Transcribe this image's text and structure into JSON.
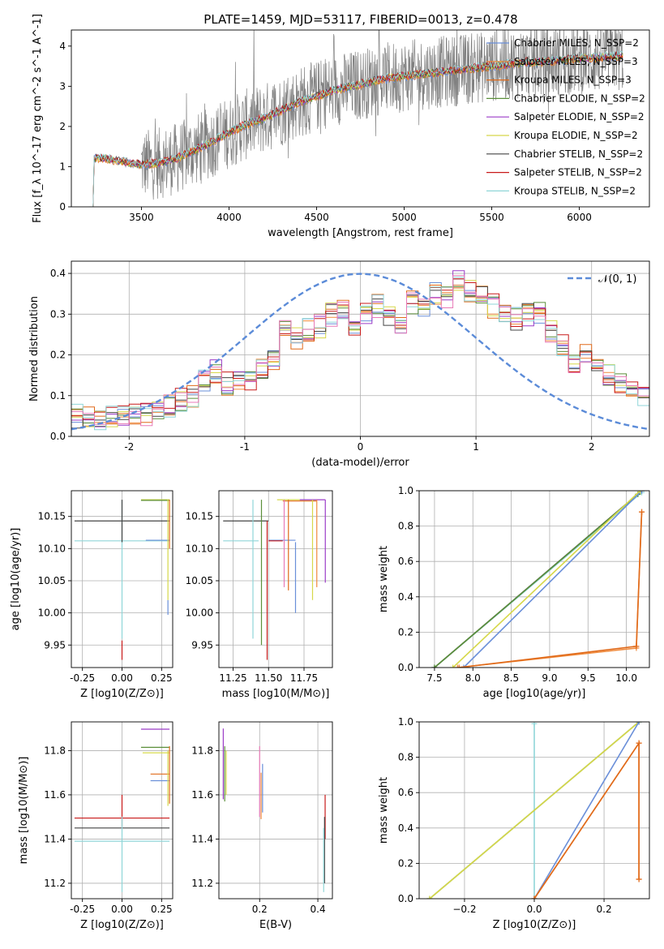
{
  "figure": {
    "title": "PLATE=1459, MJD=53117, FIBERID=0013, z=0.478"
  },
  "legend_labels": {
    "spectrum": [
      "Chabrier MILES, N_SSP=2",
      "Salpeter MILES, N_SSP=3",
      "Kroupa MILES, N_SSP=3",
      "Chabrier ELODIE, N_SSP=2",
      "Salpeter ELODIE, N_SSP=2",
      "Kroupa ELODIE, N_SSP=2",
      "Chabrier STELIB, N_SSP=2",
      "Salpeter STELIB, N_SSP=2",
      "Kroupa STELIB, N_SSP=2"
    ],
    "residuals": "𝒩(0, 1)"
  },
  "colors": {
    "Chabrier MILES": "#6a8fd9",
    "Salpeter MILES": "#f08a3c",
    "Kroupa MILES": "#e06a1a",
    "Chabrier ELODIE": "#5b8f3a",
    "Salpeter ELODIE": "#9b3cc8",
    "Kroupa ELODIE": "#d6d84a",
    "Chabrier STELIB": "#444444",
    "Salpeter STELIB": "#c81a1a",
    "Kroupa STELIB": "#8fd6d8",
    "pink": "#e87ab8",
    "data": "#808080",
    "normal": "#5b8bd8",
    "grid": "#b0b0b0"
  },
  "chart_data": [
    {
      "id": "spectrum",
      "type": "line",
      "title": "PLATE=1459, MJD=53117, FIBERID=0013, z=0.478",
      "xlabel": "wavelength [Angstrom, rest frame]",
      "ylabel": "Flux [f_λ 10^-17 erg cm^-2 s^-1 A^-1]",
      "xlim": [
        3100,
        6400
      ],
      "ylim": [
        0,
        4.4
      ],
      "xticks": [
        3500,
        4000,
        4500,
        5000,
        5500,
        6000
      ],
      "yticks": [
        0,
        1,
        2,
        3,
        4
      ],
      "grid": false,
      "legend_position": "top-right",
      "continuum": {
        "x": [
          3200,
          3230,
          3300,
          3400,
          3500,
          3600,
          3700,
          3800,
          3900,
          4000,
          4100,
          4200,
          4300,
          4400,
          4500,
          4600,
          4700,
          4800,
          4900,
          5000,
          5100,
          5200,
          5300,
          5400,
          5500,
          5600,
          5700,
          5800,
          5900,
          6000,
          6100,
          6200,
          6250
        ],
        "y": [
          0,
          1.22,
          1.2,
          1.12,
          1.05,
          1.08,
          1.2,
          1.4,
          1.6,
          1.85,
          2.05,
          2.2,
          2.4,
          2.6,
          2.75,
          2.9,
          3.0,
          3.1,
          3.2,
          3.25,
          3.3,
          3.35,
          3.4,
          3.45,
          3.5,
          3.55,
          3.6,
          3.6,
          3.65,
          3.7,
          3.7,
          3.75,
          3.75
        ]
      },
      "series_names": [
        "Chabrier MILES, N_SSP=2",
        "Salpeter MILES, N_SSP=3",
        "Kroupa MILES, N_SSP=3",
        "Chabrier ELODIE, N_SSP=2",
        "Salpeter ELODIE, N_SSP=2",
        "Kroupa ELODIE, N_SSP=2",
        "Chabrier STELIB, N_SSP=2",
        "Salpeter STELIB, N_SSP=2",
        "Kroupa STELIB, N_SSP=2"
      ]
    },
    {
      "id": "residuals",
      "type": "line",
      "xlabel": "(data-model)/error",
      "ylabel": "Normed distribution",
      "xlim": [
        -2.5,
        2.5
      ],
      "ylim": [
        0,
        0.43
      ],
      "xticks": [
        -2,
        -1,
        0,
        1,
        2
      ],
      "yticks": [
        0.0,
        0.1,
        0.2,
        0.3,
        0.4
      ],
      "grid": true,
      "legend_position": "top-right",
      "bins_start": -2.5,
      "bin_width": 0.1,
      "histogram_envelope": [
        0.05,
        0.045,
        0.045,
        0.05,
        0.045,
        0.05,
        0.055,
        0.07,
        0.075,
        0.09,
        0.1,
        0.14,
        0.16,
        0.13,
        0.14,
        0.14,
        0.16,
        0.19,
        0.27,
        0.24,
        0.26,
        0.27,
        0.3,
        0.31,
        0.26,
        0.3,
        0.32,
        0.3,
        0.28,
        0.33,
        0.32,
        0.35,
        0.34,
        0.38,
        0.36,
        0.34,
        0.32,
        0.3,
        0.29,
        0.3,
        0.3,
        0.26,
        0.22,
        0.18,
        0.2,
        0.17,
        0.15,
        0.13,
        0.12,
        0.1
      ],
      "normal": {
        "mean": 0,
        "sigma": 1
      }
    },
    {
      "id": "age-vs-Z",
      "type": "scatter",
      "xlabel": "Z [log10(Z/Z⊙)]",
      "ylabel": "age [log10(age/yr)]",
      "xlim": [
        -0.32,
        0.32
      ],
      "ylim": [
        9.915,
        10.19
      ],
      "xticks": [
        -0.25,
        0.0,
        0.25
      ],
      "yticks": [
        9.95,
        10.0,
        10.05,
        10.1,
        10.15
      ],
      "grid": true
    },
    {
      "id": "age-vs-mass",
      "type": "scatter",
      "xlabel": "mass [log10(M/M⊙)]",
      "xlim": [
        11.15,
        11.95
      ],
      "ylim": [
        9.915,
        10.19
      ],
      "xticks": [
        11.25,
        11.5,
        11.75
      ],
      "yticks": [
        9.95,
        10.0,
        10.05,
        10.1,
        10.15
      ],
      "grid": true
    },
    {
      "id": "weight-vs-age",
      "type": "line",
      "xlabel": "age [log10(age/yr)]",
      "ylabel": "mass weight",
      "xlim": [
        7.3,
        10.3
      ],
      "ylim": [
        0,
        1.0
      ],
      "xticks": [
        7.5,
        8.0,
        8.5,
        9.0,
        9.5,
        10.0
      ],
      "yticks": [
        0.0,
        0.2,
        0.4,
        0.6,
        0.8,
        1.0
      ],
      "grid": true
    },
    {
      "id": "mass-vs-Z",
      "type": "scatter",
      "xlabel": "Z [log10(Z/Z⊙)]",
      "ylabel": "mass [log10(M/M⊙)]",
      "xlim": [
        -0.32,
        0.32
      ],
      "ylim": [
        11.13,
        11.93
      ],
      "xticks": [
        -0.25,
        0.0,
        0.25
      ],
      "yticks": [
        11.2,
        11.4,
        11.6,
        11.8
      ],
      "grid": true
    },
    {
      "id": "mass-vs-ebv",
      "type": "scatter",
      "xlabel": "E(B-V)",
      "xlim": [
        0.06,
        0.45
      ],
      "ylim": [
        11.13,
        11.93
      ],
      "xticks": [
        0.2,
        0.4
      ],
      "yticks": [
        11.2,
        11.4,
        11.6,
        11.8
      ],
      "grid": true
    },
    {
      "id": "weight-vs-Z",
      "type": "line",
      "xlabel": "Z [log10(Z/Z⊙)]",
      "ylabel": "mass weight",
      "xlim": [
        -0.33,
        0.33
      ],
      "ylim": [
        0,
        1.0
      ],
      "xticks": [
        -0.2,
        0.0,
        0.2
      ],
      "yticks": [
        0.0,
        0.2,
        0.4,
        0.6,
        0.8,
        1.0
      ],
      "grid": true
    }
  ],
  "panel_series": {
    "ageZ_h": [
      {
        "c": "#444444",
        "x0": -0.3,
        "x1": 0.3,
        "y": 10.143
      },
      {
        "c": "#8fd6d8",
        "x0": -0.3,
        "x1": 0.3,
        "y": 10.112
      },
      {
        "c": "#6a8fd9",
        "x0": 0.15,
        "x1": 0.3,
        "y": 10.113
      },
      {
        "c": "#d6d84a",
        "x0": 0.12,
        "x1": 0.3,
        "y": 10.176
      },
      {
        "c": "#5b8f3a",
        "x0": 0.12,
        "x1": 0.3,
        "y": 10.175
      }
    ],
    "ageZ_v": [
      {
        "c": "#c81a1a",
        "x": 0.0,
        "y0": 9.927,
        "y1": 9.957
      },
      {
        "c": "#8fd6d8",
        "x": 0.0,
        "y0": 9.96,
        "y1": 10.175
      },
      {
        "c": "#444444",
        "x": 0.0,
        "y0": 10.11,
        "y1": 10.176
      },
      {
        "c": "#6a8fd9",
        "x": 0.29,
        "y0": 9.997,
        "y1": 10.02
      },
      {
        "c": "#d6d84a",
        "x": 0.29,
        "y0": 10.02,
        "y1": 10.176
      },
      {
        "c": "#e06a1a",
        "x": 0.3,
        "y0": 10.1,
        "y1": 10.176
      }
    ],
    "ageMass_h": [
      {
        "c": "#444444",
        "x0": 11.18,
        "x1": 11.5,
        "y": 10.143
      },
      {
        "c": "#8fd6d8",
        "x0": 11.18,
        "x1": 11.43,
        "y": 10.112
      },
      {
        "c": "#6a8fd9",
        "x0": 11.5,
        "x1": 11.69,
        "y": 10.113
      },
      {
        "c": "#c81a1a",
        "x0": 11.5,
        "x1": 11.6,
        "y": 10.112
      },
      {
        "c": "#d6d84a",
        "x0": 11.56,
        "x1": 11.84,
        "y": 10.176
      },
      {
        "c": "#e06a1a",
        "x0": 11.6,
        "x1": 11.84,
        "y": 10.174
      },
      {
        "c": "#9b3cc8",
        "x0": 11.72,
        "x1": 11.9,
        "y": 10.176
      }
    ],
    "ageMass_v": [
      {
        "c": "#8fd6d8",
        "x": 11.39,
        "y0": 9.96,
        "y1": 10.176
      },
      {
        "c": "#c81a1a",
        "x": 11.49,
        "y0": 9.927,
        "y1": 10.143
      },
      {
        "c": "#5b8f3a",
        "x": 11.45,
        "y0": 9.95,
        "y1": 10.176
      },
      {
        "c": "#6a8fd9",
        "x": 11.69,
        "y0": 10.0,
        "y1": 10.11
      },
      {
        "c": "#e87ab8",
        "x": 11.61,
        "y0": 10.04,
        "y1": 10.176
      },
      {
        "c": "#e06a1a",
        "x": 11.64,
        "y0": 10.035,
        "y1": 10.176
      },
      {
        "c": "#d6d84a",
        "x": 11.81,
        "y0": 10.02,
        "y1": 10.176
      },
      {
        "c": "#f08a3c",
        "x": 11.84,
        "y0": 10.04,
        "y1": 10.176
      },
      {
        "c": "#9b3cc8",
        "x": 11.9,
        "y0": 10.047,
        "y1": 10.176
      }
    ],
    "wAge_lines": [
      {
        "c": "#8fd6d8",
        "pts": [
          [
            7.5,
            0.0
          ],
          [
            10.2,
            0.99
          ]
        ]
      },
      {
        "c": "#444444",
        "pts": [
          [
            7.5,
            0.0
          ],
          [
            10.2,
            1.0
          ]
        ]
      },
      {
        "c": "#5b8f3a",
        "pts": [
          [
            7.5,
            0.0
          ],
          [
            10.15,
            0.98
          ]
        ]
      },
      {
        "c": "#6a8fd9",
        "pts": [
          [
            7.88,
            0.0
          ],
          [
            10.2,
            1.0
          ]
        ]
      },
      {
        "c": "#d6d84a",
        "pts": [
          [
            7.74,
            0.0
          ],
          [
            10.18,
            1.0
          ]
        ]
      },
      {
        "c": "#f08a3c",
        "pts": [
          [
            7.8,
            0.0
          ],
          [
            10.13,
            0.11
          ],
          [
            10.2,
            0.88
          ]
        ]
      },
      {
        "c": "#e06a1a",
        "pts": [
          [
            7.82,
            0.0
          ],
          [
            10.13,
            0.12
          ],
          [
            10.2,
            0.88
          ]
        ]
      }
    ],
    "massZ_h": [
      {
        "c": "#9b3cc8",
        "x0": 0.12,
        "x1": 0.3,
        "y": 11.897
      },
      {
        "c": "#5b8f3a",
        "x0": 0.12,
        "x1": 0.3,
        "y": 11.815
      },
      {
        "c": "#d6d84a",
        "x0": 0.13,
        "x1": 0.3,
        "y": 11.79
      },
      {
        "c": "#e06a1a",
        "x0": 0.18,
        "x1": 0.3,
        "y": 11.694
      },
      {
        "c": "#6a8fd9",
        "x0": 0.18,
        "x1": 0.3,
        "y": 11.664
      },
      {
        "c": "#c81a1a",
        "x0": -0.3,
        "x1": 0.3,
        "y": 11.495
      },
      {
        "c": "#444444",
        "x0": -0.3,
        "x1": 0.3,
        "y": 11.45
      },
      {
        "c": "#8fd6d8",
        "x0": -0.3,
        "x1": 0.3,
        "y": 11.39
      }
    ],
    "massZ_v": [
      {
        "c": "#c81a1a",
        "x": 0.0,
        "y0": 11.45,
        "y1": 11.6
      },
      {
        "c": "#8fd6d8",
        "x": 0.0,
        "y0": 11.16,
        "y1": 11.5
      },
      {
        "c": "#d6d84a",
        "x": 0.29,
        "y0": 11.55,
        "y1": 11.8
      },
      {
        "c": "#e06a1a",
        "x": 0.3,
        "y0": 11.56,
        "y1": 11.82
      }
    ],
    "massEbv_v": [
      {
        "c": "#9b3cc8",
        "x": 0.075,
        "y0": 11.58,
        "y1": 11.9
      },
      {
        "c": "#5b8f3a",
        "x": 0.08,
        "y0": 11.57,
        "y1": 11.82
      },
      {
        "c": "#d6d84a",
        "x": 0.085,
        "y0": 11.6,
        "y1": 11.8
      },
      {
        "c": "#e87ab8",
        "x": 0.2,
        "y0": 11.5,
        "y1": 11.82
      },
      {
        "c": "#f08a3c",
        "x": 0.205,
        "y0": 11.49,
        "y1": 11.7
      },
      {
        "c": "#6a8fd9",
        "x": 0.21,
        "y0": 11.52,
        "y1": 11.74
      },
      {
        "c": "#c81a1a",
        "x": 0.425,
        "y0": 11.4,
        "y1": 11.6
      },
      {
        "c": "#444444",
        "x": 0.423,
        "y0": 11.2,
        "y1": 11.5
      },
      {
        "c": "#8fd6d8",
        "x": 0.42,
        "y0": 11.16,
        "y1": 11.45
      }
    ],
    "wZ_lines": [
      {
        "c": "#8fd6d8",
        "pts": [
          [
            0.0,
            0.0
          ],
          [
            0.0,
            0.99
          ]
        ]
      },
      {
        "c": "#5b8f3a",
        "pts": [
          [
            -0.3,
            0.0
          ],
          [
            0.3,
            1.0
          ]
        ]
      },
      {
        "c": "#d6d84a",
        "pts": [
          [
            -0.3,
            0.0
          ],
          [
            0.3,
            1.0
          ]
        ]
      },
      {
        "c": "#6a8fd9",
        "pts": [
          [
            0.0,
            0.0
          ],
          [
            0.3,
            1.0
          ]
        ]
      },
      {
        "c": "#f08a3c",
        "pts": [
          [
            0.0,
            0.0
          ],
          [
            0.3,
            0.88
          ],
          [
            0.3,
            0.11
          ]
        ]
      },
      {
        "c": "#e06a1a",
        "pts": [
          [
            0.0,
            0.0
          ],
          [
            0.3,
            0.88
          ],
          [
            0.3,
            0.11
          ]
        ]
      }
    ]
  }
}
